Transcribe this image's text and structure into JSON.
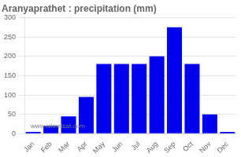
{
  "chart_data": {
    "type": "bar",
    "title": "Aranyaprathet : precipitation (mm)",
    "categories": [
      "Jan",
      "Feb",
      "Mar",
      "Apr",
      "May",
      "Jun",
      "Jul",
      "Aug",
      "Sep",
      "Oct",
      "Nov",
      "Dec"
    ],
    "values": [
      5,
      20,
      45,
      95,
      180,
      180,
      180,
      200,
      275,
      180,
      50,
      5
    ],
    "color": "#0000ee",
    "ylim": [
      0,
      300
    ],
    "yticks": [
      0,
      50,
      100,
      150,
      200,
      250,
      300
    ],
    "grid": true,
    "annotations": [
      "www.allmetsat.com"
    ]
  }
}
